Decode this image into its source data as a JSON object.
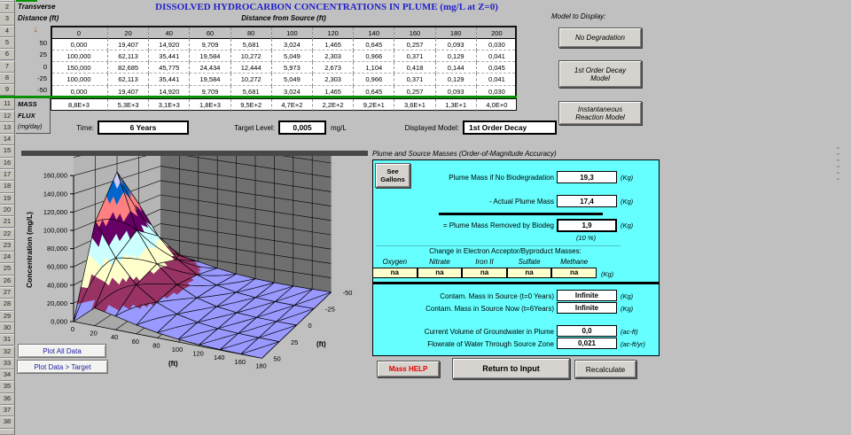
{
  "title": "DISSOLVED HYDROCARBON CONCENTRATIONS IN PLUME (mg/L at Z=0)",
  "row_numbers": {
    "before_gap": [
      "2",
      "3",
      "4",
      "5",
      "6",
      "7",
      "8",
      "9"
    ],
    "after_gap": [
      "11",
      "12",
      "13",
      "14",
      "15",
      "16",
      "17",
      "18",
      "19",
      "20",
      "21",
      "22",
      "23",
      "24",
      "25",
      "26",
      "27",
      "28",
      "29",
      "30",
      "31",
      "32",
      "33",
      "34",
      "35",
      "36",
      "37",
      "38"
    ]
  },
  "table": {
    "corner_label_1": "Transverse",
    "corner_label_2": "Distance (ft)",
    "arrow": "↓",
    "col_group_label": "Distance from Source (ft)",
    "col_headers": [
      "0",
      "20",
      "40",
      "60",
      "80",
      "100",
      "120",
      "140",
      "160",
      "180",
      "200"
    ],
    "rows": [
      {
        "label": "50",
        "values": [
          "0,000",
          "19,407",
          "14,920",
          "9,709",
          "5,681",
          "3,024",
          "1,465",
          "0,645",
          "0,257",
          "0,093",
          "0,030"
        ]
      },
      {
        "label": "25",
        "values": [
          "100,000",
          "62,113",
          "35,441",
          "19,584",
          "10,272",
          "5,049",
          "2,303",
          "0,966",
          "0,371",
          "0,129",
          "0,041"
        ]
      },
      {
        "label": "0",
        "values": [
          "150,000",
          "82,685",
          "45,775",
          "24,434",
          "12,444",
          "5,973",
          "2,673",
          "1,104",
          "0,418",
          "0,144",
          "0,045"
        ]
      },
      {
        "label": "-25",
        "values": [
          "100,000",
          "62,113",
          "35,441",
          "19,584",
          "10,272",
          "5,049",
          "2,303",
          "0,966",
          "0,371",
          "0,129",
          "0,041"
        ]
      },
      {
        "label": "-50",
        "values": [
          "0,000",
          "19,407",
          "14,920",
          "9,709",
          "5,681",
          "3,024",
          "1,465",
          "0,645",
          "0,257",
          "0,093",
          "0,030"
        ]
      }
    ],
    "mass_flux_label": [
      "MASS",
      "FLUX",
      "(mg/day)"
    ],
    "mass_values": [
      "8,8E+3",
      "5,3E+3",
      "3,1E+3",
      "1,8E+3",
      "9,5E+2",
      "4,7E+2",
      "2,2E+2",
      "9,2E+1",
      "3,6E+1",
      "1,3E+1",
      "4,0E+0"
    ]
  },
  "controls": {
    "time_label": "Time:",
    "time_value": "6 Years",
    "target_label": "Target Level:",
    "target_value": "0,005",
    "target_unit": "mg/L",
    "displayed_label": "Displayed Model:",
    "displayed_value": "1st Order Decay"
  },
  "model_display": {
    "label": "Model to Display:",
    "buttons": [
      "No Degradation",
      "1st Order Decay Model",
      "Instantaneous Reaction Model"
    ]
  },
  "plot_buttons": [
    "Plot All Data",
    "Plot Data > Target"
  ],
  "mass_panel": {
    "title": "Plume and Source Masses (Order-of-Magnitude Accuracy)",
    "see_gallons": "See Gallons",
    "lines": [
      {
        "label": "Plume Mass if No Biodegradation",
        "value": "19,3",
        "unit": "(Kg)"
      },
      {
        "label": "- Actual Plume Mass",
        "value": "17,4",
        "unit": "(Kg)"
      },
      {
        "label": "= Plume Mass Removed by Biodeg",
        "value": "1,9",
        "unit": "(Kg)"
      },
      {
        "label": "Contam. Mass in Source (t=0 Years)",
        "value": "Infinite",
        "unit": "(Kg)"
      },
      {
        "label": "Contam. Mass in Source Now (t=6Years)",
        "value": "Infinite",
        "unit": "(Kg)"
      },
      {
        "label": "Current Volume of Groundwater in Plume",
        "value": "0,0",
        "unit": "(ac-ft)"
      },
      {
        "label": "Flowrate of Water Through Source Zone",
        "value": "0,021",
        "unit": "(ac-ft/yr)"
      }
    ],
    "percent_note": "(10 %)",
    "acceptors_header": "Change in Electron Acceptor/Byproduct Masses:",
    "acceptors": {
      "names": [
        "Oxygen",
        "Nitrate",
        "Iron II",
        "Sulfate",
        "Methane"
      ],
      "values": [
        "na",
        "na",
        "na",
        "na",
        "na"
      ],
      "unit": "(Kg)"
    },
    "buttons": {
      "help": "Mass HELP",
      "return": "Return to Input",
      "recalc": "Recalculate"
    }
  },
  "chart_data": {
    "type": "surface",
    "title": "",
    "value_axis": {
      "label": "Concentration (mg/L)",
      "ticks": [
        "0,000",
        "20,000",
        "40,000",
        "60,000",
        "80,000",
        "100,000",
        "120,000",
        "140,000",
        "160,000"
      ],
      "min": 0,
      "max": 160,
      "major_unit": 20
    },
    "x_axis": {
      "label": "(ft)",
      "ticks": [
        0,
        20,
        40,
        60,
        80,
        100,
        120,
        140,
        160,
        180
      ]
    },
    "depth_axis": {
      "label": "(ft)",
      "ticks": [
        -50,
        -25,
        0,
        25,
        50
      ]
    },
    "transverse_order_front_to_back": [
      50,
      25,
      0,
      -25,
      -50
    ],
    "series": [
      {
        "name": "50",
        "values": [
          0,
          19.407,
          14.92,
          9.709,
          5.681,
          3.024,
          1.465,
          0.645,
          0.257,
          0.093
        ]
      },
      {
        "name": "25",
        "values": [
          100,
          62.113,
          35.441,
          19.584,
          10.272,
          5.049,
          2.303,
          0.966,
          0.371,
          0.129
        ]
      },
      {
        "name": "0",
        "values": [
          150,
          82.685,
          45.775,
          24.434,
          12.444,
          5.973,
          2.673,
          1.104,
          0.418,
          0.144
        ]
      },
      {
        "name": "-25",
        "values": [
          100,
          62.113,
          35.441,
          19.584,
          10.272,
          5.049,
          2.303,
          0.966,
          0.371,
          0.129
        ]
      },
      {
        "name": "-50",
        "values": [
          0,
          19.407,
          14.92,
          9.709,
          5.681,
          3.024,
          1.465,
          0.645,
          0.257,
          0.093
        ]
      }
    ],
    "band_size": 20,
    "band_colors": [
      "#9999FF",
      "#993366",
      "#FFFFCC",
      "#CCFFFF",
      "#660066",
      "#FF8080",
      "#0066CC",
      "#CCCCFF"
    ],
    "wall_colors": {
      "left": "#B5B5B5",
      "right": "#6F6F6F",
      "floor": "#A9A9A9"
    },
    "legend_position": "none",
    "grid": true
  },
  "colors": {
    "title_blue": "#2121C8",
    "divider_green": "#089000",
    "panel_cyan": "#66FFFF",
    "acceptor_yellow": "#FFFFCC",
    "help_red": "#E00000",
    "arrow_brown": "#994C00"
  }
}
